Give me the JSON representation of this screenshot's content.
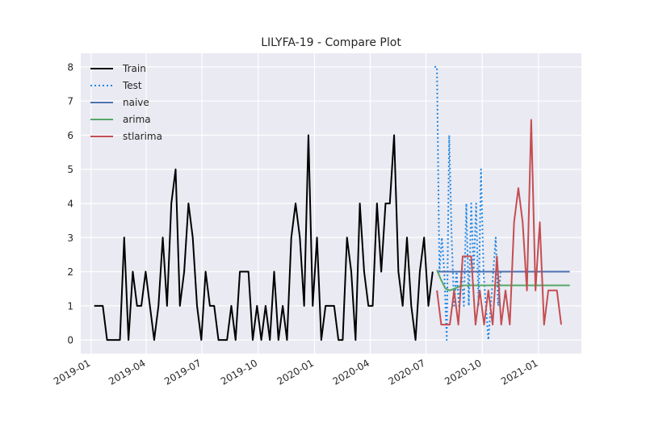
{
  "chart_data": {
    "type": "line",
    "title": "LILYFA-19 - Compare Plot",
    "xlabel": "",
    "ylabel": "",
    "x_ticks": [
      "2019-01",
      "2019-04",
      "2019-07",
      "2019-10",
      "2020-01",
      "2020-04",
      "2020-07",
      "2020-10",
      "2021-01"
    ],
    "y_ticks": [
      "0",
      "1",
      "2",
      "3",
      "4",
      "5",
      "6",
      "7",
      "8"
    ],
    "xlim": [
      "2018-12-15",
      "2021-03-12"
    ],
    "ylim": [
      -0.4,
      8.4
    ],
    "grid": true,
    "legend_position": "top-left",
    "series": [
      {
        "name": "Train",
        "color": "#000000",
        "style": "solid",
        "points": [
          [
            "2019-01-06",
            1
          ],
          [
            "2019-01-13",
            1
          ],
          [
            "2019-01-20",
            1
          ],
          [
            "2019-01-27",
            0
          ],
          [
            "2019-02-03",
            0
          ],
          [
            "2019-02-10",
            0
          ],
          [
            "2019-02-17",
            0
          ],
          [
            "2019-02-24",
            3
          ],
          [
            "2019-03-03",
            0
          ],
          [
            "2019-03-10",
            2
          ],
          [
            "2019-03-17",
            1
          ],
          [
            "2019-03-24",
            1
          ],
          [
            "2019-03-31",
            2
          ],
          [
            "2019-04-07",
            1
          ],
          [
            "2019-04-14",
            0
          ],
          [
            "2019-04-21",
            1
          ],
          [
            "2019-04-28",
            3
          ],
          [
            "2019-05-05",
            1
          ],
          [
            "2019-05-12",
            4
          ],
          [
            "2019-05-19",
            5
          ],
          [
            "2019-05-26",
            1
          ],
          [
            "2019-06-02",
            2
          ],
          [
            "2019-06-09",
            4
          ],
          [
            "2019-06-16",
            3
          ],
          [
            "2019-06-23",
            1
          ],
          [
            "2019-06-30",
            0
          ],
          [
            "2019-07-07",
            2
          ],
          [
            "2019-07-14",
            1
          ],
          [
            "2019-07-21",
            1
          ],
          [
            "2019-07-28",
            0
          ],
          [
            "2019-08-04",
            0
          ],
          [
            "2019-08-11",
            0
          ],
          [
            "2019-08-18",
            1
          ],
          [
            "2019-08-25",
            0
          ],
          [
            "2019-09-01",
            2
          ],
          [
            "2019-09-08",
            2
          ],
          [
            "2019-09-15",
            2
          ],
          [
            "2019-09-22",
            0
          ],
          [
            "2019-09-29",
            1
          ],
          [
            "2019-10-06",
            0
          ],
          [
            "2019-10-13",
            1
          ],
          [
            "2019-10-20",
            0
          ],
          [
            "2019-10-27",
            2
          ],
          [
            "2019-11-03",
            0
          ],
          [
            "2019-11-10",
            1
          ],
          [
            "2019-11-17",
            0
          ],
          [
            "2019-11-24",
            3
          ],
          [
            "2019-12-01",
            4
          ],
          [
            "2019-12-08",
            3
          ],
          [
            "2019-12-15",
            1
          ],
          [
            "2019-12-22",
            6
          ],
          [
            "2019-12-29",
            1
          ],
          [
            "2020-01-05",
            3
          ],
          [
            "2020-01-12",
            0
          ],
          [
            "2020-01-19",
            1
          ],
          [
            "2020-01-26",
            1
          ],
          [
            "2020-02-02",
            1
          ],
          [
            "2020-02-09",
            0
          ],
          [
            "2020-02-16",
            0
          ],
          [
            "2020-02-23",
            3
          ],
          [
            "2020-03-01",
            2
          ],
          [
            "2020-03-08",
            0
          ],
          [
            "2020-03-15",
            4
          ],
          [
            "2020-03-22",
            2
          ],
          [
            "2020-03-29",
            1
          ],
          [
            "2020-04-05",
            1
          ],
          [
            "2020-04-12",
            4
          ],
          [
            "2020-04-19",
            2
          ],
          [
            "2020-04-26",
            4
          ],
          [
            "2020-05-03",
            4
          ],
          [
            "2020-05-10",
            6
          ],
          [
            "2020-05-17",
            2
          ],
          [
            "2020-05-24",
            1
          ],
          [
            "2020-05-31",
            3
          ],
          [
            "2020-06-07",
            1
          ],
          [
            "2020-06-14",
            0
          ],
          [
            "2020-06-21",
            2
          ],
          [
            "2020-06-28",
            3
          ],
          [
            "2020-07-05",
            1
          ],
          [
            "2020-07-12",
            2
          ]
        ]
      },
      {
        "name": "Test",
        "color": "#1e88e5",
        "style": "dotted",
        "points": [
          [
            "2020-07-15",
            8
          ],
          [
            "2020-07-19",
            8
          ],
          [
            "2020-07-23",
            2
          ],
          [
            "2020-07-27",
            3
          ],
          [
            "2020-07-31",
            2
          ],
          [
            "2020-08-04",
            0
          ],
          [
            "2020-08-08",
            6
          ],
          [
            "2020-08-12",
            3
          ],
          [
            "2020-08-16",
            1
          ],
          [
            "2020-08-20",
            2
          ],
          [
            "2020-08-24",
            1
          ],
          [
            "2020-08-28",
            2
          ],
          [
            "2020-09-01",
            1
          ],
          [
            "2020-09-05",
            4
          ],
          [
            "2020-09-09",
            1
          ],
          [
            "2020-09-13",
            4
          ],
          [
            "2020-09-17",
            2
          ],
          [
            "2020-09-21",
            4
          ],
          [
            "2020-09-25",
            1
          ],
          [
            "2020-09-29",
            5
          ],
          [
            "2020-10-03",
            2
          ],
          [
            "2020-10-07",
            1
          ],
          [
            "2020-10-11",
            0
          ],
          [
            "2020-10-15",
            1
          ],
          [
            "2020-10-19",
            2
          ],
          [
            "2020-10-23",
            3
          ],
          [
            "2020-10-27",
            1
          ],
          [
            "2020-10-31",
            2
          ],
          [
            "2020-11-04",
            2
          ]
        ]
      },
      {
        "name": "naive",
        "color": "#4c72b0",
        "style": "solid",
        "points": [
          [
            "2020-07-19",
            2
          ],
          [
            "2021-02-21",
            2
          ]
        ]
      },
      {
        "name": "arima",
        "color": "#55a868",
        "style": "solid",
        "points": [
          [
            "2020-07-19",
            2.05
          ],
          [
            "2020-07-26",
            1.75
          ],
          [
            "2020-08-02",
            1.5
          ],
          [
            "2020-08-09",
            1.45
          ],
          [
            "2020-08-16",
            1.5
          ],
          [
            "2020-08-23",
            1.55
          ],
          [
            "2020-08-30",
            1.6
          ],
          [
            "2020-09-13",
            1.6
          ],
          [
            "2021-02-21",
            1.6
          ]
        ]
      },
      {
        "name": "stlarima",
        "color": "#c44e52",
        "style": "solid",
        "points": [
          [
            "2020-07-19",
            1.45
          ],
          [
            "2020-07-26",
            0.45
          ],
          [
            "2020-08-02",
            0.45
          ],
          [
            "2020-08-09",
            0.45
          ],
          [
            "2020-08-16",
            1.45
          ],
          [
            "2020-08-23",
            0.45
          ],
          [
            "2020-08-30",
            2.45
          ],
          [
            "2020-09-06",
            2.45
          ],
          [
            "2020-09-13",
            2.45
          ],
          [
            "2020-09-20",
            0.45
          ],
          [
            "2020-09-27",
            1.45
          ],
          [
            "2020-10-04",
            0.45
          ],
          [
            "2020-10-11",
            1.45
          ],
          [
            "2020-10-18",
            0.45
          ],
          [
            "2020-10-25",
            2.45
          ],
          [
            "2020-11-01",
            0.45
          ],
          [
            "2020-11-08",
            1.45
          ],
          [
            "2020-11-15",
            0.45
          ],
          [
            "2020-11-22",
            3.45
          ],
          [
            "2020-11-29",
            4.45
          ],
          [
            "2020-12-06",
            3.45
          ],
          [
            "2020-12-13",
            1.45
          ],
          [
            "2020-12-20",
            6.45
          ],
          [
            "2020-12-27",
            1.45
          ],
          [
            "2021-01-03",
            3.45
          ],
          [
            "2021-01-10",
            0.45
          ],
          [
            "2021-01-17",
            1.45
          ],
          [
            "2021-01-24",
            1.45
          ],
          [
            "2021-01-31",
            1.45
          ],
          [
            "2021-02-07",
            0.45
          ]
        ]
      }
    ]
  }
}
